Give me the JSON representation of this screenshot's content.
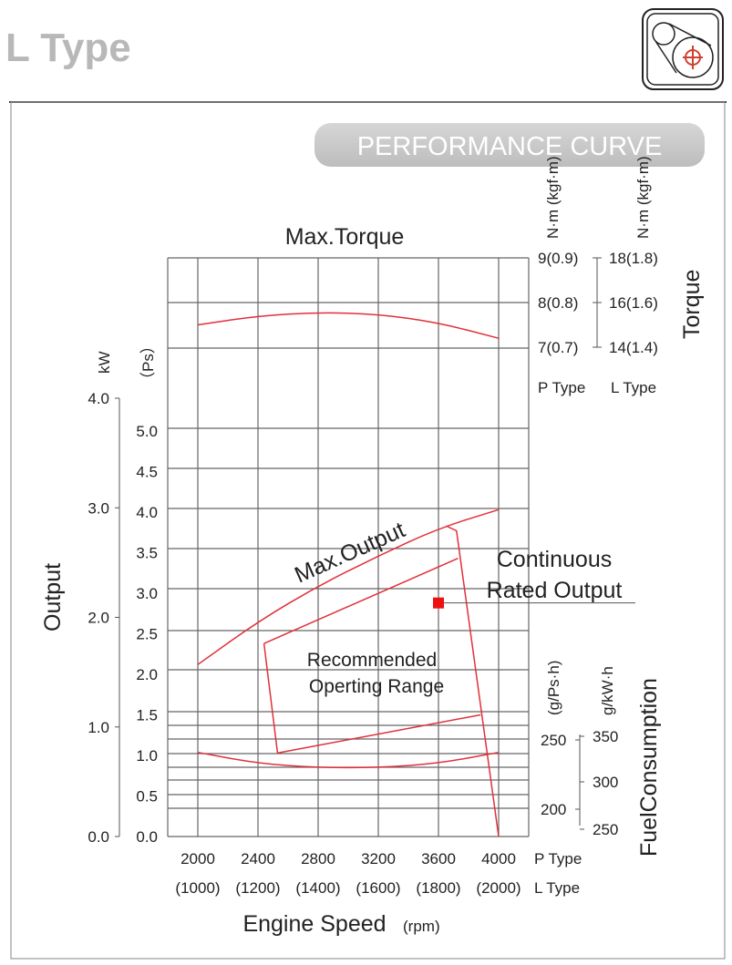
{
  "header": {
    "title": "L Type",
    "icon": "belt-pulley-icon",
    "banner": "PERFORMANCE CURVE"
  },
  "colors": {
    "curve": "#e0303a",
    "grid": "#666666",
    "title": "#b8b8b8",
    "point": "#ee1111"
  },
  "chart_data": {
    "type": "line",
    "title": "PERFORMANCE CURVE",
    "xlabel": "Engine Speed",
    "xlabel_unit": "(rpm)",
    "x_ticks_p": [
      "2000",
      "2400",
      "2800",
      "3200",
      "3600",
      "4000"
    ],
    "x_ticks_l": [
      "(1000)",
      "(1200)",
      "(1400)",
      "(1600)",
      "(1800)",
      "(2000)"
    ],
    "x_row_labels": [
      "P Type",
      "L Type"
    ],
    "x": [
      2000,
      2400,
      2800,
      3200,
      3600,
      4000
    ],
    "xlim": [
      1800,
      4200
    ],
    "output_axis": {
      "label": "Output",
      "kw_unit": "kW",
      "ps_unit": "（Ps）",
      "kw_ticks": [
        "4.0",
        "3.0",
        "2.0",
        "1.0",
        "0.0"
      ],
      "ps_ticks": [
        "5.0",
        "4.5",
        "4.0",
        "3.5",
        "3.0",
        "2.5",
        "2.0",
        "1.5",
        "1.0",
        "0.5",
        "0.0"
      ]
    },
    "torque_axis": {
      "label": "Torque",
      "unit_p": "N·m (kgf·m)",
      "unit_l": "N·m (kgf·m)",
      "p_ticks": [
        "9(0.9)",
        "8(0.8)",
        "7(0.7)"
      ],
      "l_ticks": [
        "18(1.8)",
        "16(1.6)",
        "14(1.4)"
      ],
      "p_label": "P Type",
      "l_label": "L Type"
    },
    "fuel_axis": {
      "label": "FuelConsumption",
      "unit_p": "(g/Ps·h)",
      "unit_l": "g/kW·h",
      "p_ticks": [
        "250",
        "200"
      ],
      "l_ticks": [
        "350",
        "300",
        "250"
      ]
    },
    "series": [
      {
        "name": "Max.Torque",
        "axis": "torque_nm_p",
        "values": [
          7.5,
          7.7,
          7.78,
          7.74,
          7.55,
          7.2
        ]
      },
      {
        "name": "Max.Output",
        "axis": "ps",
        "values": [
          2.12,
          2.65,
          3.09,
          3.46,
          3.8,
          4.03
        ]
      },
      {
        "name": "Fuel Consumption",
        "axis": "g_per_ps_h",
        "values": [
          241,
          233,
          230,
          230,
          233,
          241
        ]
      }
    ],
    "continuous_rated_line": [
      [
        2440,
        2.38
      ],
      [
        3730,
        3.43
      ]
    ],
    "operating_range": {
      "label_1": "Recommended",
      "label_2": "Operting Range",
      "outline": [
        [
          2440,
          2.38
        ],
        [
          2530,
          1.03
        ],
        [
          3880,
          1.5
        ]
      ],
      "right_edge": [
        [
          3650,
          3.83
        ],
        [
          3720,
          3.77
        ],
        [
          4000,
          0.0
        ]
      ]
    },
    "rated_point": {
      "rpm": 3600,
      "ps": 2.88,
      "label_1": "Continuous",
      "label_2": "Rated Output"
    }
  }
}
